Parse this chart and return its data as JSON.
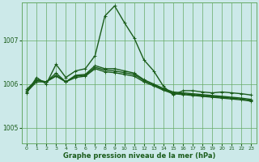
{
  "title": "Graphe pression niveau de la mer (hPa)",
  "background_color": "#cce9e9",
  "grid_color": "#66aa66",
  "line_color": "#1a5c1a",
  "yticks": [
    1005,
    1006,
    1007
  ],
  "xticks": [
    0,
    1,
    2,
    3,
    4,
    5,
    6,
    7,
    8,
    9,
    10,
    11,
    12,
    13,
    14,
    15,
    16,
    17,
    18,
    19,
    20,
    21,
    22,
    23
  ],
  "xlim": [
    -0.5,
    23.5
  ],
  "ylim": [
    1004.65,
    1007.85
  ],
  "series": [
    {
      "y": [
        1005.8,
        1006.15,
        1006.0,
        1006.45,
        1006.15,
        1006.3,
        1006.35,
        1006.65,
        1007.55,
        1007.78,
        1007.4,
        1007.05,
        1006.55,
        1006.3,
        1005.95,
        1005.75,
        1005.85,
        1005.85,
        1005.82,
        1005.8,
        1005.82,
        1005.8,
        1005.78,
        1005.75
      ],
      "marker": true,
      "lw": 1.0
    },
    {
      "y": [
        1005.82,
        1006.05,
        1006.05,
        1006.25,
        1006.05,
        1006.2,
        1006.22,
        1006.42,
        1006.35,
        1006.35,
        1006.3,
        1006.25,
        1006.1,
        1006.0,
        1005.9,
        1005.82,
        1005.8,
        1005.78,
        1005.76,
        1005.74,
        1005.72,
        1005.7,
        1005.68,
        1005.65
      ],
      "marker": false,
      "lw": 1.0
    },
    {
      "y": [
        1005.85,
        1006.08,
        1006.05,
        1006.2,
        1006.05,
        1006.18,
        1006.2,
        1006.38,
        1006.32,
        1006.3,
        1006.26,
        1006.22,
        1006.08,
        1005.98,
        1005.88,
        1005.8,
        1005.78,
        1005.76,
        1005.74,
        1005.72,
        1005.7,
        1005.68,
        1005.66,
        1005.63
      ],
      "marker": false,
      "lw": 1.0
    },
    {
      "y": [
        1005.88,
        1006.1,
        1006.05,
        1006.18,
        1006.05,
        1006.15,
        1006.18,
        1006.35,
        1006.28,
        1006.26,
        1006.22,
        1006.18,
        1006.05,
        1005.96,
        1005.86,
        1005.78,
        1005.76,
        1005.74,
        1005.72,
        1005.7,
        1005.68,
        1005.66,
        1005.64,
        1005.61
      ],
      "marker": false,
      "lw": 1.0
    }
  ]
}
